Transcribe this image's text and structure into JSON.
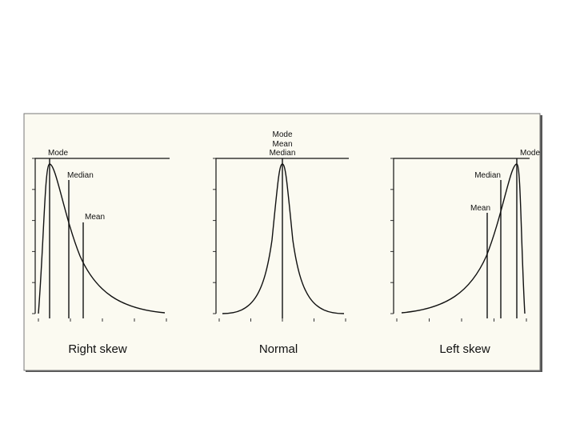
{
  "panels": [
    {
      "caption": "Right skew",
      "labels": [
        "Mode",
        "Median",
        "Mean"
      ]
    },
    {
      "caption": "Normal",
      "labels": [
        "Mode",
        "Mean",
        "Median"
      ]
    },
    {
      "caption": "Left skew",
      "labels": [
        "Mode",
        "Median",
        "Mean"
      ]
    }
  ]
}
